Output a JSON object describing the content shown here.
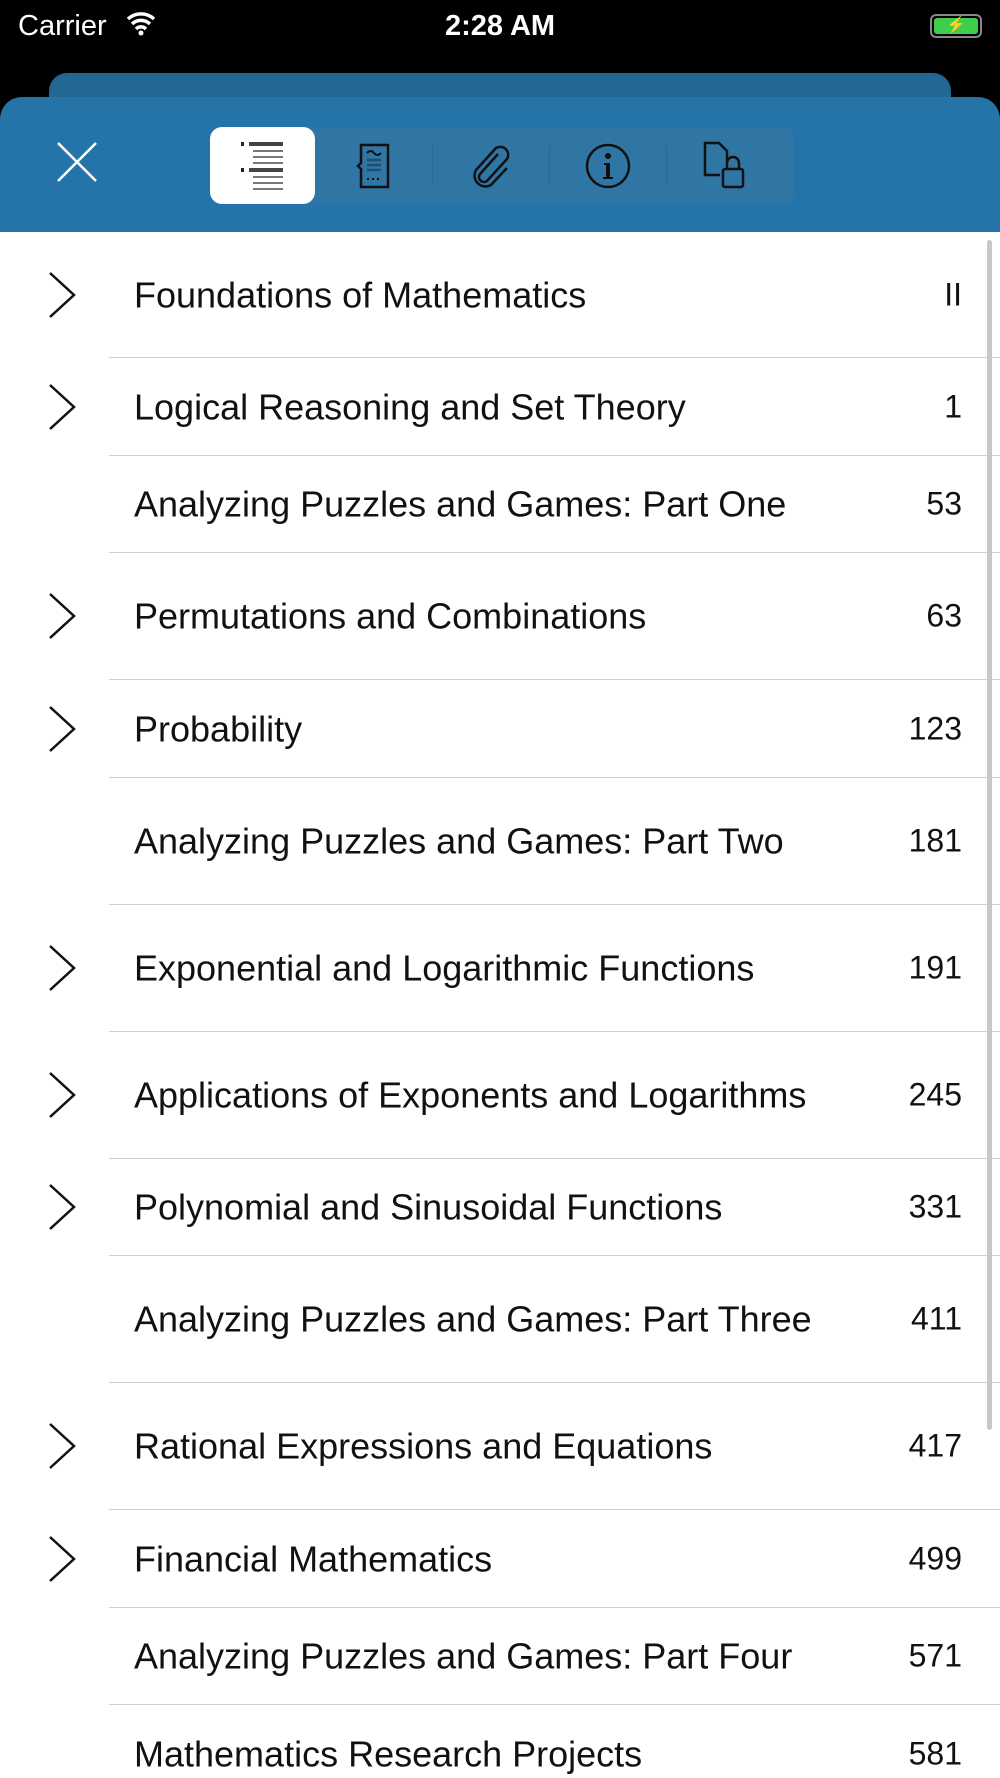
{
  "status": {
    "carrier": "Carrier",
    "time": "2:28 AM",
    "battery": "charging"
  },
  "toolbar": {
    "close": "close-icon",
    "tabs": [
      {
        "icon": "table-of-contents-icon",
        "selected": true
      },
      {
        "icon": "annotations-icon"
      },
      {
        "icon": "attachments-icon"
      },
      {
        "icon": "info-icon"
      },
      {
        "icon": "security-icon"
      }
    ],
    "accent": "#2574a9"
  },
  "toc": [
    {
      "title": "Foundations of Mathematics",
      "page": "II",
      "expandable": true
    },
    {
      "title": "Logical Reasoning and Set Theory",
      "page": "1",
      "expandable": true
    },
    {
      "title": "Analyzing Puzzles and Games: Part One",
      "page": "53",
      "expandable": false
    },
    {
      "title": "Permutations and Combinations",
      "page": "63",
      "expandable": true
    },
    {
      "title": "Probability",
      "page": "123",
      "expandable": true
    },
    {
      "title": "Analyzing Puzzles and Games: Part Two",
      "page": "181",
      "expandable": false
    },
    {
      "title": "Exponential and Logarithmic Functions",
      "page": "191",
      "expandable": true
    },
    {
      "title": "Applications of Exponents and Logarithms",
      "page": "245",
      "expandable": true
    },
    {
      "title": "Polynomial and Sinusoidal Functions",
      "page": "331",
      "expandable": true
    },
    {
      "title": "Analyzing Puzzles and Games: Part Three",
      "page": "411",
      "expandable": false
    },
    {
      "title": "Rational Expressions and Equations",
      "page": "417",
      "expandable": true
    },
    {
      "title": "Financial Mathematics",
      "page": "499",
      "expandable": true
    },
    {
      "title": "Analyzing Puzzles and Games: Part Four",
      "page": "571",
      "expandable": false
    },
    {
      "title": "Mathematics Research Projects",
      "page": "581",
      "expandable": false
    }
  ]
}
